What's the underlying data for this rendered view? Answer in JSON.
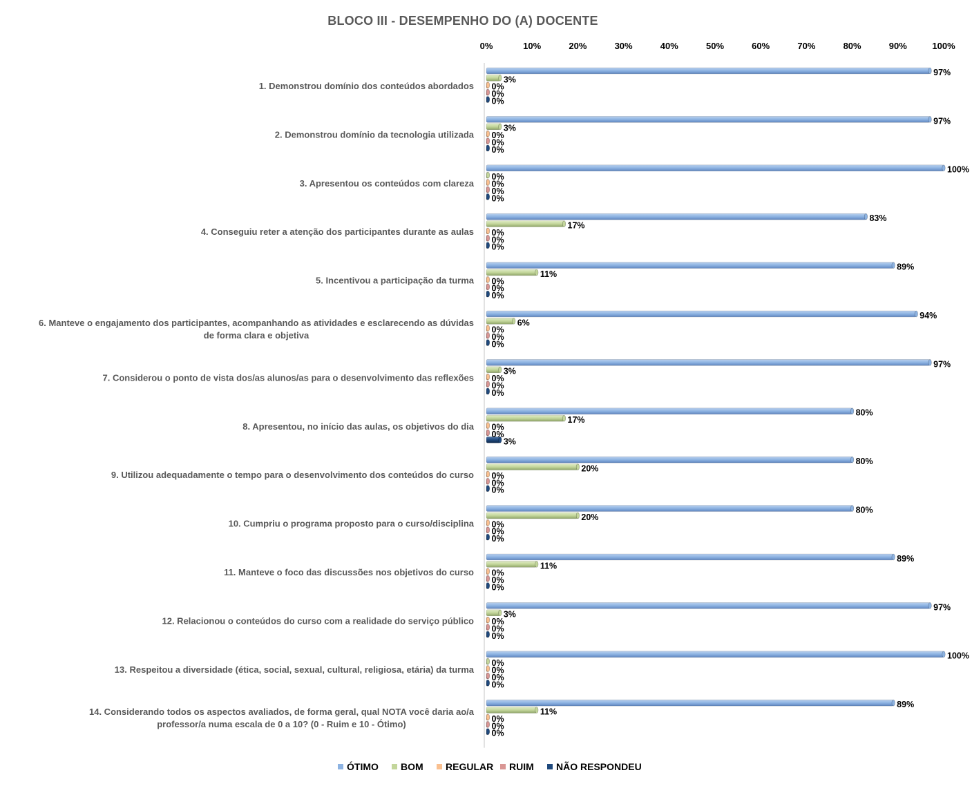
{
  "chart_data": {
    "type": "bar",
    "orientation": "horizontal",
    "title": "BLOCO III - DESEMPENHO DO (A) DOCENTE",
    "xlabel": "",
    "ylabel": "",
    "xlim": [
      0,
      100
    ],
    "x_ticks": [
      "0%",
      "10%",
      "20%",
      "30%",
      "40%",
      "50%",
      "60%",
      "70%",
      "80%",
      "90%",
      "100%"
    ],
    "x_axis_position": "top",
    "grid": false,
    "legend_position": "bottom",
    "value_suffix": "%",
    "categories": [
      [
        "1. Demonstrou domínio dos conteúdos abordados"
      ],
      [
        "2. Demonstrou domínio da tecnologia utilizada"
      ],
      [
        "3. Apresentou os conteúdos com clareza"
      ],
      [
        "4. Conseguiu reter a atenção dos participantes durante as aulas"
      ],
      [
        "5. Incentivou a participação da turma"
      ],
      [
        "6. Manteve o engajamento dos participantes, acompanhando as atividades e esclarecendo as dúvidas",
        "de forma clara e objetiva"
      ],
      [
        "7. Considerou o ponto de vista dos/as alunos/as para o desenvolvimento das reflexões"
      ],
      [
        "8. Apresentou, no início das aulas, os objetivos do dia"
      ],
      [
        "9. Utilizou adequadamente o tempo para o desenvolvimento dos conteúdos do curso"
      ],
      [
        "10. Cumpriu o programa proposto para o curso/disciplina"
      ],
      [
        "11. Manteve o foco das discussões nos objetivos do curso"
      ],
      [
        "12. Relacionou o conteúdos do curso com a realidade do serviço público"
      ],
      [
        "13. Respeitou a diversidade (ética, social, sexual, cultural, religiosa, etária) da turma"
      ],
      [
        "14. Considerando todos os aspectos avaliados, de forma geral, qual NOTA você daria ao/a",
        "professor/a numa escala de 0 a 10? (0 - Ruim e 10 - Ótimo)"
      ]
    ],
    "series": [
      {
        "name": "ÓTIMO",
        "color": "#8db3e2",
        "values": [
          97,
          97,
          100,
          83,
          89,
          94,
          97,
          80,
          80,
          80,
          89,
          97,
          100,
          89
        ]
      },
      {
        "name": "BOM",
        "color": "#c3d69b",
        "values": [
          3,
          3,
          0,
          17,
          11,
          6,
          3,
          17,
          20,
          20,
          11,
          3,
          0,
          11
        ]
      },
      {
        "name": "REGULAR",
        "color": "#fac090",
        "values": [
          0,
          0,
          0,
          0,
          0,
          0,
          0,
          0,
          0,
          0,
          0,
          0,
          0,
          0
        ]
      },
      {
        "name": "RUIM",
        "color": "#d99694",
        "values": [
          0,
          0,
          0,
          0,
          0,
          0,
          0,
          0,
          0,
          0,
          0,
          0,
          0,
          0
        ]
      },
      {
        "name": "NÃO RESPONDEU",
        "color": "#1f497d",
        "values": [
          0,
          0,
          0,
          0,
          0,
          0,
          0,
          3,
          0,
          0,
          0,
          0,
          0,
          0
        ]
      }
    ]
  }
}
